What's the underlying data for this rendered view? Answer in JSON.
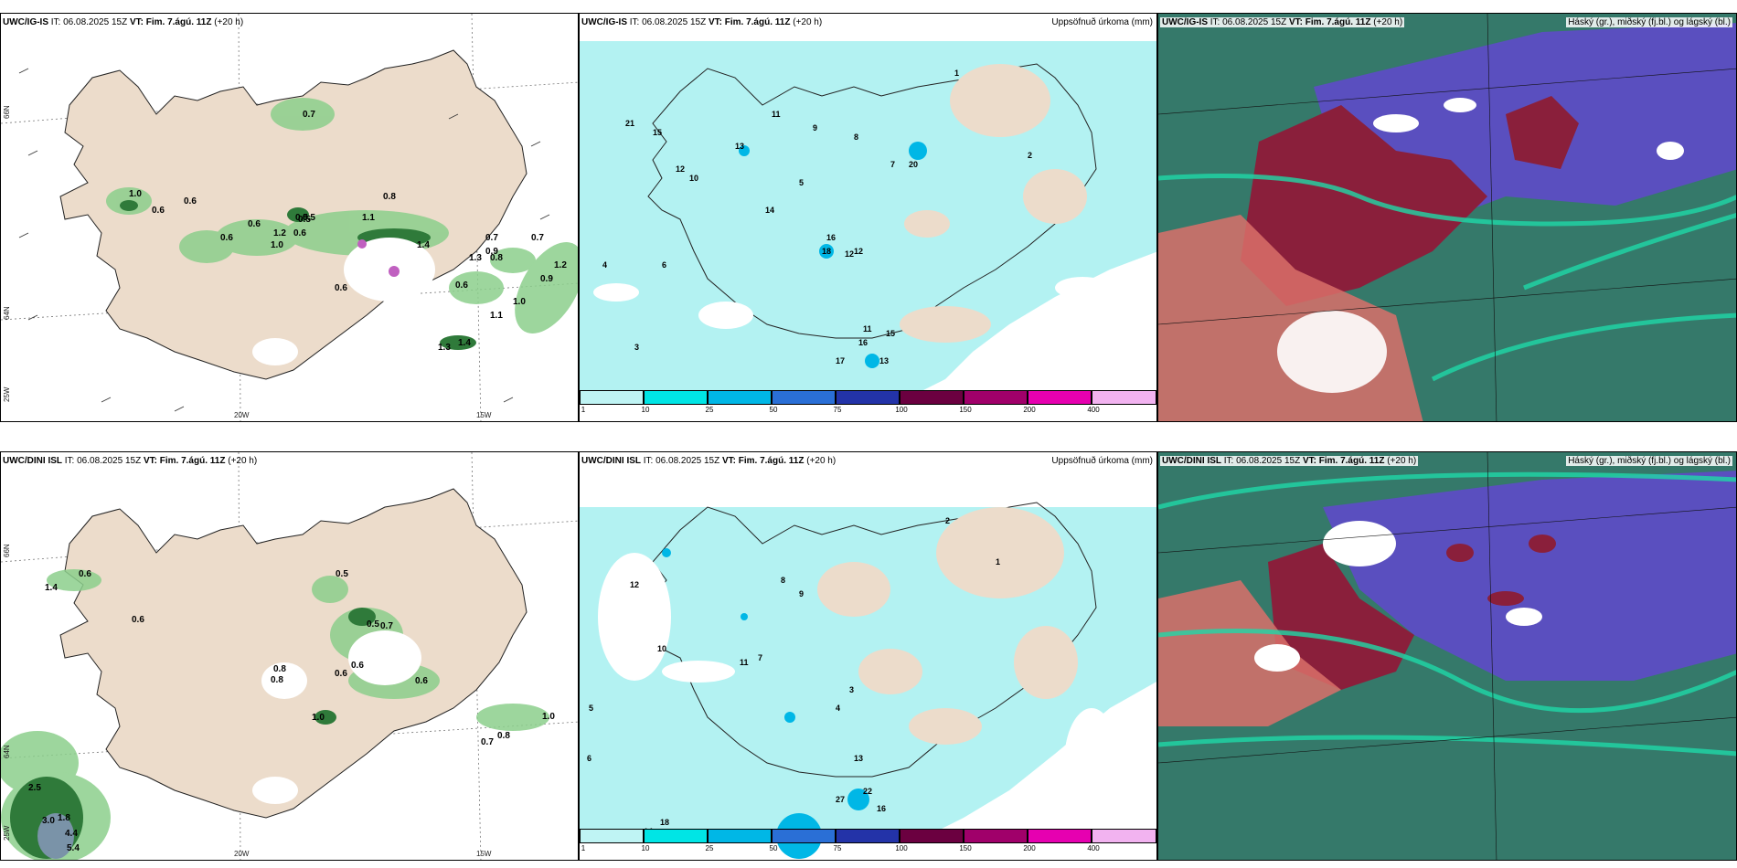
{
  "timestamp": {
    "it_prefix": "IT: ",
    "it_value": "06.08.2025 15Z",
    "vt_label": "VT:",
    "vt_value": "Fim. 7.ágú. 11Z",
    "lead": "(+20 h)"
  },
  "rows": [
    {
      "model": "UWC/IG-IS"
    },
    {
      "model": "UWC/DINI ISL"
    }
  ],
  "titles": {
    "precip": "Uppsöfnuð úrkoma (mm)",
    "clouds": "Háský (gr.), miðský (fj.bl.) og lágský (bl.)"
  },
  "axis_labels": {
    "lon_20": "20W",
    "lon_15": "15W",
    "lat_66": "66N",
    "lat_64": "64N",
    "lat_25": "25W"
  },
  "colorbar": {
    "ticks": [
      "1",
      "10",
      "25",
      "50",
      "75",
      "100",
      "150",
      "200",
      "400"
    ],
    "colors": [
      "#bff4f4",
      "#00e5e5",
      "#00b7e6",
      "#2a6fd6",
      "#2333a8",
      "#6b0040",
      "#a0006a",
      "#e600b0",
      "#f2b3f0"
    ]
  },
  "colors": {
    "land": "#ecdccb",
    "sea": "#ffffff",
    "precip_light": "#b3f2f2",
    "wind_green_light": "#cce8c4",
    "wind_green_mid": "#8ccf8c",
    "wind_green_dark": "#2f7a3a",
    "cloud_high": "#8a1f3b",
    "cloud_mid": "#5a4fbf",
    "cloud_low": "#2d8a78"
  },
  "wind_values_top": [
    "0.7",
    "1.0",
    "0.6",
    "0.6",
    "0.6",
    "0.6",
    "0.5",
    "1.2",
    "1.0",
    "0.6",
    "0.5",
    "1.1",
    "0.8",
    "0.9",
    "0.7",
    "0.8",
    "1.3",
    "1.4",
    "0.6",
    "0.9",
    "0.7",
    "1.2",
    "1.0",
    "1.1",
    "1.3",
    "1.4",
    "0.5",
    "0.6"
  ],
  "wind_values_bottom": [
    "0.6",
    "1.4",
    "0.6",
    "0.5",
    "0.5",
    "0.7",
    "0.8",
    "0.8",
    "0.6",
    "0.6",
    "0.6",
    "1.0",
    "0.7",
    "0.8",
    "1.0",
    "2.5",
    "3.0",
    "1.8",
    "4.4",
    "5.4"
  ],
  "precip_values_top": [
    "21",
    "15",
    "13",
    "12",
    "10",
    "14",
    "16",
    "12",
    "11",
    "9",
    "8",
    "7",
    "6",
    "5",
    "4",
    "3",
    "2",
    "1",
    "20",
    "18",
    "17",
    "16",
    "15",
    "13",
    "12",
    "11"
  ],
  "precip_values_bottom": [
    "12",
    "11",
    "10",
    "9",
    "8",
    "7",
    "6",
    "5",
    "4",
    "3",
    "2",
    "1",
    "13",
    "27",
    "22",
    "18",
    "16",
    "14"
  ]
}
